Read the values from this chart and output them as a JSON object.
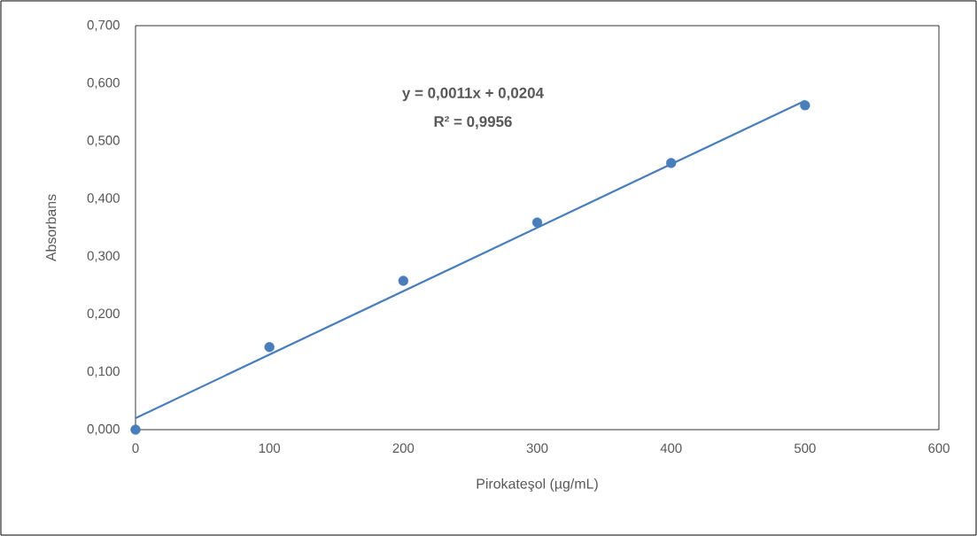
{
  "chart_data": {
    "type": "scatter",
    "xlabel": "Pirokateşol (µg/mL)",
    "ylabel": "Absorbans",
    "annotations": [
      "y = 0,0011x + 0,0204",
      "R² = 0,9956"
    ],
    "series": [
      {
        "color": "#4a7ebb",
        "x": [
          0,
          100,
          200,
          300,
          400,
          500
        ],
        "values": [
          0.0,
          0.143,
          0.258,
          0.359,
          0.462,
          0.562
        ],
        "marker": "circle"
      },
      {
        "type": "line",
        "color": "#4a7ebb",
        "x": [
          0,
          500
        ],
        "values": [
          0.02,
          0.57
        ],
        "marker": "none",
        "line_style": "solid"
      }
    ],
    "xlim": [
      0,
      600
    ],
    "xticks": [
      0,
      100,
      200,
      300,
      400,
      500,
      600
    ],
    "ylim": [
      0,
      0.7
    ],
    "yticks": [
      {
        "value": 0,
        "label": "0,000"
      },
      {
        "value": 0.1,
        "label": "0,100"
      },
      {
        "value": 0.2,
        "label": "0,200"
      },
      {
        "value": 0.3,
        "label": "0,300"
      },
      {
        "value": 0.4,
        "label": "0,400"
      },
      {
        "value": 0.5,
        "label": "0,500"
      },
      {
        "value": 0.6,
        "label": "0,600"
      },
      {
        "value": 0.7,
        "label": "0,700"
      }
    ],
    "grid": false
  }
}
